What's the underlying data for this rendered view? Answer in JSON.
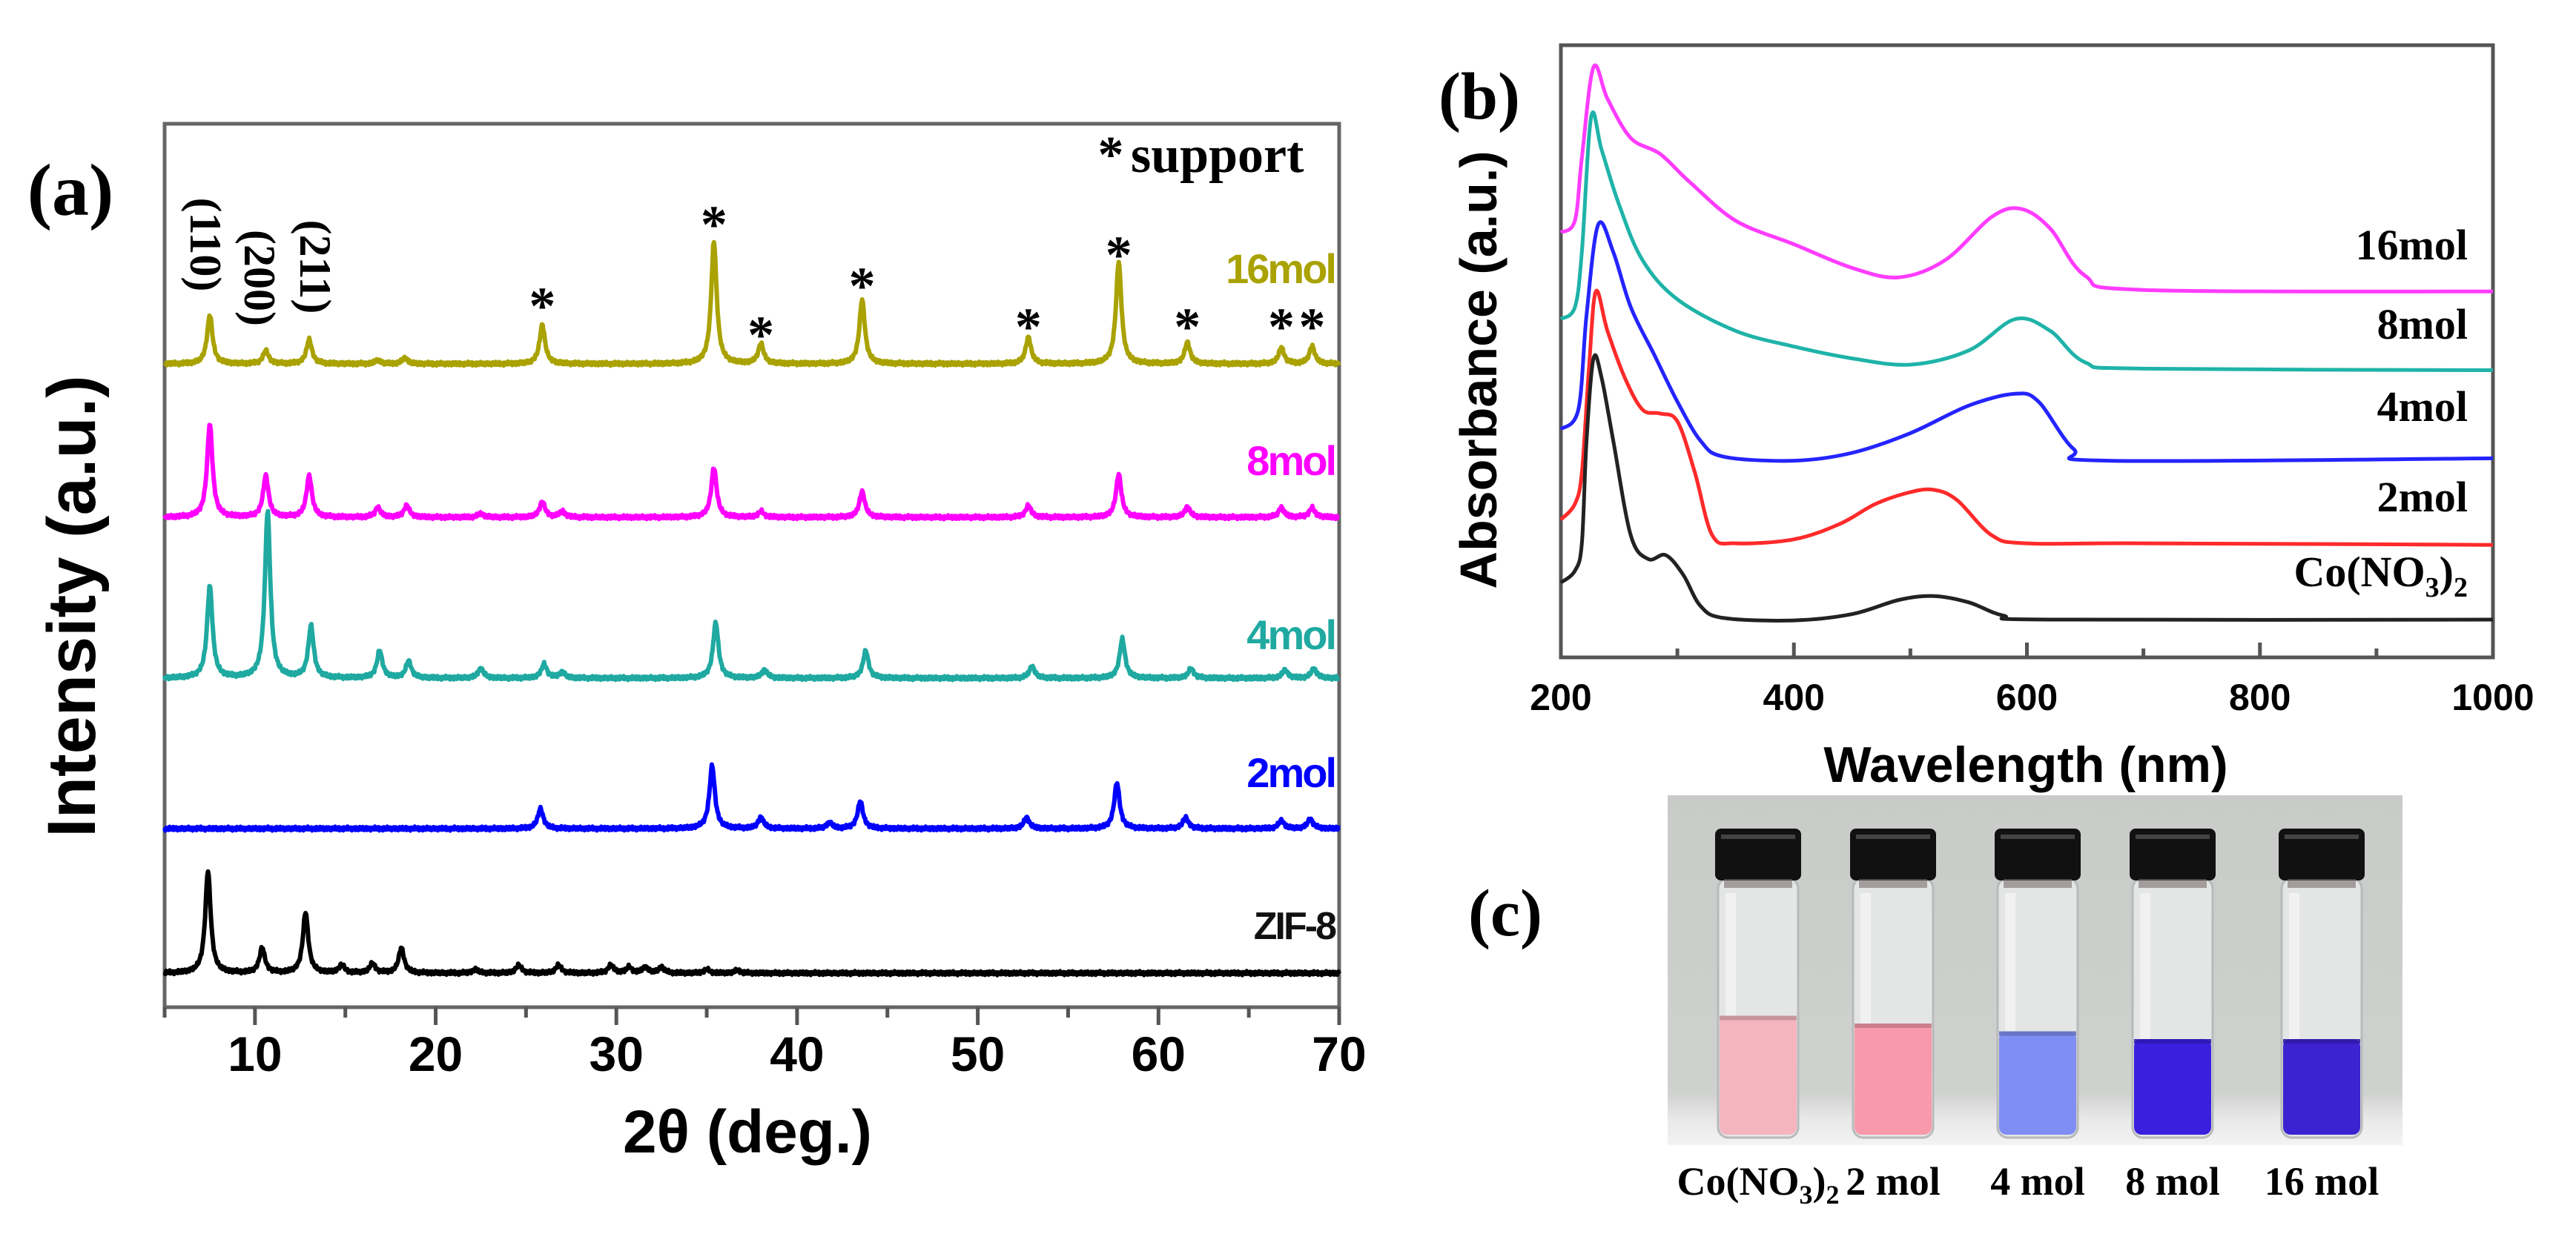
{
  "chart_data": [
    {
      "panel": "(a)",
      "type": "line",
      "xlabel": "2θ (deg.)",
      "ylabel": "Intensity (a.u.)",
      "xlim": [
        5,
        70
      ],
      "xticks": [
        "10",
        "20",
        "30",
        "40",
        "50",
        "60",
        "70"
      ],
      "xtick_values": [
        10,
        20,
        30,
        40,
        50,
        60,
        70
      ],
      "legend_note": "support",
      "legend_note_symbol": "*",
      "miller_indices": [
        {
          "label": "(110)",
          "x": 7.5
        },
        {
          "label": "(200)",
          "x": 10.6
        },
        {
          "label": "(211)",
          "x": 13.0
        }
      ],
      "support_peaks": [
        25.9,
        35.4,
        38.0,
        43.6,
        52.8,
        57.8,
        61.6,
        66.8,
        68.5
      ],
      "series": [
        {
          "name": "16mol",
          "color": "#a9a200",
          "peaks": [
            [
              7.5,
              66
            ],
            [
              10.6,
              18
            ],
            [
              13.0,
              33
            ],
            [
              16.8,
              5
            ],
            [
              18.3,
              8
            ],
            [
              25.9,
              53
            ],
            [
              35.4,
              165
            ],
            [
              38.0,
              27
            ],
            [
              43.6,
              87
            ],
            [
              52.8,
              36
            ],
            [
              57.8,
              138
            ],
            [
              61.6,
              29
            ],
            [
              66.8,
              22
            ],
            [
              68.5,
              24
            ]
          ]
        },
        {
          "name": "8mol",
          "color": "#ff00ff",
          "peaks": [
            [
              7.5,
              126
            ],
            [
              10.6,
              56
            ],
            [
              13.0,
              56
            ],
            [
              16.8,
              13
            ],
            [
              18.4,
              16
            ],
            [
              22.5,
              5
            ],
            [
              25.9,
              21
            ],
            [
              27.0,
              8
            ],
            [
              35.4,
              67
            ],
            [
              38.0,
              8
            ],
            [
              43.6,
              35
            ],
            [
              52.8,
              16
            ],
            [
              57.8,
              58
            ],
            [
              61.6,
              14
            ],
            [
              66.8,
              13
            ],
            [
              68.5,
              13
            ]
          ]
        },
        {
          "name": "4mol",
          "color": "#1fa9a1",
          "peaks": [
            [
              7.5,
              124
            ],
            [
              10.7,
              225
            ],
            [
              13.1,
              70
            ],
            [
              16.9,
              37
            ],
            [
              18.5,
              23
            ],
            [
              22.5,
              13
            ],
            [
              26.0,
              19
            ],
            [
              27.0,
              8
            ],
            [
              35.5,
              75
            ],
            [
              38.2,
              11
            ],
            [
              43.8,
              37
            ],
            [
              53.0,
              16
            ],
            [
              58.0,
              53
            ],
            [
              61.8,
              13
            ],
            [
              67.0,
              11
            ],
            [
              68.6,
              13
            ]
          ]
        },
        {
          "name": "2mol",
          "color": "#0000ff",
          "peaks": [
            [
              25.8,
              27
            ],
            [
              35.3,
              85
            ],
            [
              38.0,
              15
            ],
            [
              41.8,
              8
            ],
            [
              43.5,
              37
            ],
            [
              52.7,
              15
            ],
            [
              57.7,
              62
            ],
            [
              61.5,
              15
            ],
            [
              66.8,
              11
            ],
            [
              68.4,
              13
            ]
          ]
        },
        {
          "name": "ZIF-8",
          "color": "#000000",
          "peaks": [
            [
              7.4,
              138
            ],
            [
              10.4,
              34
            ],
            [
              12.8,
              82
            ],
            [
              14.8,
              11
            ],
            [
              16.5,
              13
            ],
            [
              18.1,
              34
            ],
            [
              22.2,
              5
            ],
            [
              24.6,
              11
            ],
            [
              26.8,
              11
            ],
            [
              29.7,
              11
            ],
            [
              30.7,
              8
            ],
            [
              31.6,
              8
            ],
            [
              32.5,
              8
            ],
            [
              35.0,
              5
            ],
            [
              36.7,
              4
            ]
          ]
        }
      ]
    },
    {
      "panel": "(b)",
      "type": "line",
      "xlabel": "Wavelength (nm)",
      "ylabel": "Absorbance (a.u.)",
      "xlim": [
        200,
        1000
      ],
      "ylim": [
        0,
        7.78
      ],
      "xticks": [
        "200",
        "400",
        "600",
        "800",
        "1000"
      ],
      "xtick_values": [
        200,
        400,
        600,
        800,
        1000
      ],
      "series": [
        {
          "name": "16mol",
          "color": "#ff3cff",
          "x": [
            200,
            212,
            218,
            228,
            240,
            260,
            285,
            310,
            350,
            400,
            450,
            490,
            530,
            570,
            595,
            620,
            650,
            700,
            1000
          ],
          "y": [
            5.4,
            5.55,
            6.35,
            7.5,
            7.1,
            6.6,
            6.4,
            6.05,
            5.55,
            5.25,
            4.95,
            4.83,
            5.05,
            5.6,
            5.7,
            5.45,
            4.85,
            4.67,
            4.65
          ]
        },
        {
          "name": "8mol",
          "color": "#1fb3a8",
          "x": [
            200,
            212,
            218,
            226,
            235,
            250,
            270,
            300,
            350,
            400,
            450,
            500,
            550,
            590,
            620,
            650,
            700,
            1000
          ],
          "y": [
            4.3,
            4.45,
            5.15,
            6.87,
            6.45,
            5.75,
            5.05,
            4.55,
            4.15,
            3.95,
            3.8,
            3.72,
            3.9,
            4.3,
            4.15,
            3.75,
            3.67,
            3.65
          ]
        },
        {
          "name": "4mol",
          "color": "#2424ff",
          "x": [
            200,
            215,
            222,
            232,
            245,
            260,
            280,
            300,
            320,
            340,
            400,
            450,
            500,
            550,
            590,
            610,
            640,
            670,
            1000
          ],
          "y": [
            2.9,
            3.15,
            4.35,
            5.5,
            5.15,
            4.45,
            3.85,
            3.25,
            2.75,
            2.55,
            2.5,
            2.6,
            2.85,
            3.2,
            3.35,
            3.25,
            2.65,
            2.5,
            2.53
          ]
        },
        {
          "name": "2mol",
          "color": "#ff2a2a",
          "x": [
            200,
            212,
            218,
            224,
            230,
            240,
            255,
            270,
            285,
            300,
            315,
            330,
            350,
            400,
            440,
            470,
            500,
            520,
            540,
            570,
            600,
            700,
            1000
          ],
          "y": [
            1.75,
            1.95,
            2.35,
            3.65,
            4.65,
            4.15,
            3.55,
            3.15,
            3.1,
            3.0,
            2.35,
            1.55,
            1.45,
            1.5,
            1.7,
            1.95,
            2.1,
            2.13,
            2.0,
            1.55,
            1.45,
            1.45,
            1.43
          ]
        },
        {
          "name": "Co(NO3)2",
          "label_main": "Co(NO",
          "label_sub": "3",
          "label_end": ")",
          "label_sub2": "2",
          "color": "#222222",
          "x": [
            200,
            212,
            218,
            222,
            228,
            235,
            245,
            260,
            275,
            290,
            305,
            320,
            340,
            400,
            450,
            490,
            520,
            550,
            580,
            620,
            1000
          ],
          "y": [
            0.95,
            1.1,
            1.45,
            2.75,
            3.8,
            3.55,
            2.75,
            1.55,
            1.25,
            1.3,
            1.05,
            0.65,
            0.5,
            0.47,
            0.55,
            0.73,
            0.78,
            0.7,
            0.53,
            0.48,
            0.48
          ]
        }
      ]
    }
  ],
  "panel_c": {
    "label": "(c)",
    "vials": [
      {
        "label_main": "Co(NO",
        "label_sub": "3",
        "label_end": ")",
        "label_sub2": "2",
        "color": "#f4b5bf",
        "fill": 0.47
      },
      {
        "label": "2 mol",
        "color": "#f89aab",
        "fill": 0.44
      },
      {
        "label": "4 mol",
        "color": "#7f8ef2",
        "fill": 0.41
      },
      {
        "label": "8 mol",
        "color": "#3a1fdf",
        "fill": 0.38
      },
      {
        "label": "16 mol",
        "color": "#3d22d2",
        "fill": 0.38
      }
    ]
  }
}
